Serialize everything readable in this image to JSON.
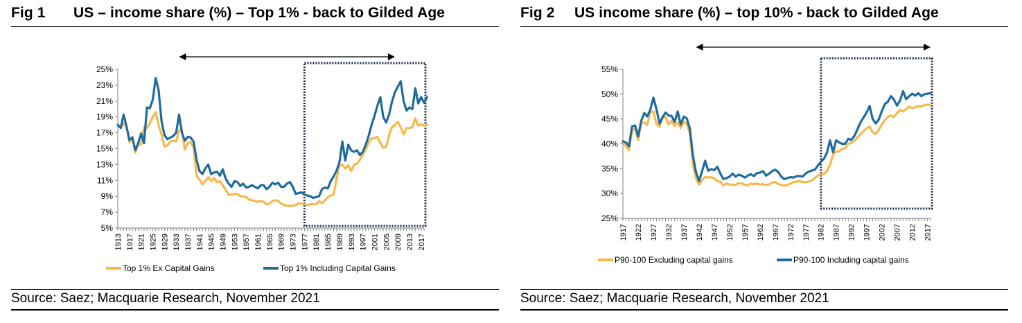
{
  "figures": [
    {
      "fig_label": "Fig 1",
      "title": "US – income share (%) – Top 1% - back to Gilded Age",
      "source": "Source: Saez; Macquarie Research, November 2021"
    },
    {
      "fig_label": "Fig 2",
      "title": "US income share (%) – top 10% - back to Gilded Age",
      "source": "Source: Saez; Macquarie Research, November 2021"
    }
  ],
  "colors": {
    "ex_capital_gains": "#F7B84B",
    "including_capital_gains": "#1F6B9E"
  },
  "chart_data": [
    {
      "type": "line",
      "title": "US – income share (%) – Top 1% - back to Gilded Age",
      "x_start": 1913,
      "x_end": 2018,
      "x_tick_labels": [
        "1913",
        "1917",
        "1921",
        "1925",
        "1929",
        "1933",
        "1937",
        "1941",
        "1945",
        "1949",
        "1953",
        "1957",
        "1961",
        "1965",
        "1969",
        "1973",
        "1977",
        "1981",
        "1985",
        "1989",
        "1993",
        "1997",
        "2001",
        "2005",
        "2009",
        "2013",
        "2017"
      ],
      "y_tick_labels": [
        "5%",
        "7%",
        "9%",
        "11%",
        "13%",
        "15%",
        "17%",
        "19%",
        "21%",
        "23%",
        "25%"
      ],
      "ylim": [
        5,
        25
      ],
      "grid": false,
      "legend_position": "bottom",
      "highlight_box_x": [
        1977,
        2018
      ],
      "arrow_x": [
        1934,
        2008
      ],
      "series": [
        {
          "name": "Top 1% Ex Capital Gains",
          "color": "#F7B84B",
          "values": [
            18.0,
            17.6,
            18.2,
            17.8,
            15.8,
            16.5,
            14.5,
            15.6,
            15.5,
            17.7,
            17.6,
            18.2,
            19.0,
            19.6,
            18.0,
            16.8,
            15.3,
            15.4,
            15.9,
            16.0,
            15.9,
            17.3,
            17.3,
            14.9,
            15.7,
            15.8,
            15.1,
            11.6,
            11.1,
            10.5,
            10.9,
            11.4,
            10.9,
            11.3,
            10.8,
            10.9,
            10.4,
            9.8,
            9.2,
            9.2,
            9.3,
            9.3,
            9.0,
            9.0,
            8.9,
            8.6,
            8.5,
            8.4,
            8.3,
            8.4,
            8.3,
            8.0,
            8.1,
            8.4,
            8.5,
            8.4,
            8.1,
            7.9,
            7.8,
            7.8,
            7.8,
            7.9,
            8.1,
            8.1,
            8.0,
            7.9,
            8.0,
            8.0,
            8.0,
            8.4,
            8.1,
            8.5,
            8.9,
            9.1,
            9.2,
            11.2,
            12.9,
            13.0,
            12.5,
            12.9,
            12.2,
            13.0,
            13.1,
            13.6,
            14.2,
            14.9,
            15.8,
            16.3,
            16.3,
            16.5,
            15.7,
            15.1,
            15.2,
            16.7,
            17.7,
            18.0,
            18.4,
            17.7,
            16.8,
            17.6,
            17.6,
            17.7,
            18.8,
            17.9,
            18.1,
            17.9,
            18.0
          ]
        },
        {
          "name": "Top 1% Including Capital Gains",
          "color": "#1F6B9E",
          "values": [
            18.0,
            17.6,
            19.3,
            17.8,
            16.1,
            16.4,
            14.8,
            15.7,
            16.9,
            15.7,
            20.2,
            20.1,
            21.2,
            23.9,
            22.4,
            18.5,
            16.7,
            16.2,
            16.4,
            16.6,
            17.0,
            19.3,
            17.0,
            16.0,
            16.5,
            16.4,
            15.9,
            13.6,
            12.2,
            11.8,
            12.5,
            13.0,
            11.8,
            12.0,
            12.1,
            11.6,
            12.4,
            11.2,
            10.6,
            10.2,
            10.9,
            10.8,
            10.3,
            10.6,
            10.1,
            10.2,
            10.4,
            10.2,
            10.0,
            10.4,
            10.4,
            9.9,
            10.2,
            10.7,
            10.5,
            10.7,
            10.2,
            10.2,
            10.6,
            10.8,
            10.2,
            9.3,
            9.4,
            9.5,
            9.2,
            9.1,
            9.0,
            8.8,
            8.9,
            9.0,
            9.9,
            10.1,
            10.0,
            10.9,
            11.5,
            12.2,
            13.3,
            15.9,
            13.5,
            15.5,
            14.8,
            14.6,
            14.8,
            14.2,
            14.6,
            15.5,
            16.6,
            18.0,
            19.1,
            20.4,
            21.5,
            19.0,
            18.3,
            19.3,
            20.9,
            22.1,
            22.8,
            23.5,
            21.0,
            19.8,
            20.2,
            20.0,
            22.6,
            20.7,
            21.5,
            20.8,
            21.5
          ]
        }
      ]
    },
    {
      "type": "line",
      "title": "US income share (%) – top 10% - back to Gilded Age",
      "x_start": 1917,
      "x_end": 2018,
      "x_tick_labels": [
        "1917",
        "1922",
        "1927",
        "1932",
        "1937",
        "1942",
        "1947",
        "1952",
        "1957",
        "1962",
        "1967",
        "1972",
        "1977",
        "1982",
        "1987",
        "1992",
        "1997",
        "2002",
        "2007",
        "2012",
        "2017"
      ],
      "y_tick_labels": [
        "25%",
        "30%",
        "35%",
        "40%",
        "45%",
        "50%",
        "55%"
      ],
      "ylim": [
        25,
        55
      ],
      "grid": false,
      "legend_position": "bottom",
      "highlight_box_x": [
        1982,
        2018
      ],
      "arrow_x": [
        1941,
        2018
      ],
      "series": [
        {
          "name": "P90-100 Excluding capital gains",
          "color": "#F7B84B",
          "values": [
            40.3,
            39.5,
            38.8,
            42.6,
            43.1,
            40.8,
            44.2,
            44.3,
            43.8,
            46.4,
            46.5,
            44.0,
            43.4,
            45.2,
            45.4,
            43.9,
            44.6,
            43.6,
            44.3,
            43.2,
            44.5,
            44.0,
            42.0,
            35.8,
            33.0,
            31.8,
            32.7,
            33.3,
            33.2,
            33.3,
            33.0,
            32.5,
            32.4,
            31.6,
            32.0,
            31.8,
            31.8,
            31.7,
            32.1,
            32.0,
            31.8,
            31.6,
            32.0,
            31.9,
            32.0,
            31.8,
            31.9,
            31.7,
            31.8,
            32.2,
            32.3,
            31.9,
            31.7,
            31.6,
            31.7,
            32.0,
            32.3,
            32.4,
            32.5,
            32.3,
            32.3,
            32.4,
            32.6,
            33.1,
            33.6,
            33.8,
            34.0,
            34.5,
            35.8,
            37.8,
            38.5,
            38.5,
            39.0,
            39.1,
            40.0,
            40.2,
            40.6,
            41.3,
            41.9,
            42.6,
            43.1,
            43.5,
            42.3,
            42.0,
            42.8,
            43.9,
            44.8,
            45.4,
            45.7,
            45.4,
            46.2,
            46.8,
            46.5,
            47.0,
            47.5,
            47.2,
            47.4,
            47.6,
            47.5,
            47.8,
            47.9,
            47.8
          ]
        },
        {
          "name": "P90-100 Including capital gains",
          "color": "#1F6B9E",
          "values": [
            40.5,
            40.3,
            39.5,
            43.5,
            43.7,
            41.5,
            44.6,
            46.2,
            45.5,
            46.9,
            49.3,
            47.0,
            44.1,
            45.3,
            46.3,
            45.7,
            45.6,
            44.4,
            46.5,
            43.9,
            45.5,
            45.1,
            43.0,
            37.6,
            34.3,
            32.5,
            34.5,
            36.6,
            34.6,
            34.9,
            34.7,
            35.4,
            34.0,
            32.9,
            33.1,
            33.4,
            34.0,
            33.4,
            33.8,
            33.6,
            33.2,
            33.6,
            33.9,
            33.5,
            34.1,
            34.2,
            34.5,
            33.6,
            34.0,
            34.5,
            34.8,
            34.3,
            33.4,
            32.9,
            33.1,
            33.3,
            33.2,
            33.5,
            33.5,
            33.4,
            34.0,
            34.4,
            34.6,
            34.8,
            35.6,
            36.4,
            37.0,
            38.2,
            40.7,
            38.3,
            40.7,
            40.3,
            40.0,
            40.0,
            41.0,
            40.8,
            41.6,
            42.9,
            44.3,
            45.3,
            46.3,
            47.6,
            45.0,
            44.1,
            44.9,
            46.6,
            48.0,
            48.5,
            49.6,
            48.9,
            47.7,
            48.7,
            50.6,
            49.0,
            49.6,
            50.1,
            49.7,
            50.2,
            49.6,
            50.0,
            50.1,
            50.2
          ]
        }
      ]
    }
  ]
}
